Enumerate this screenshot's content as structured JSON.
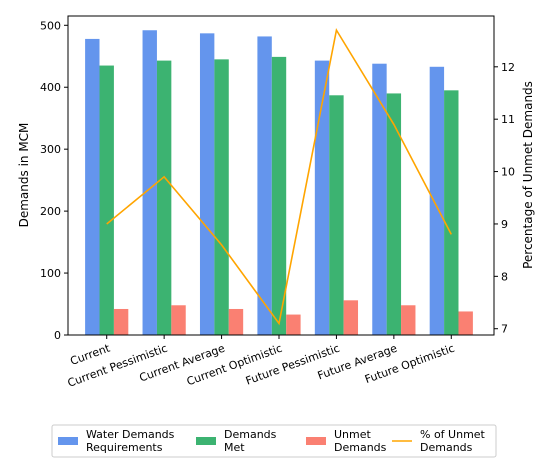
{
  "chart_data": {
    "type": "bar",
    "categories": [
      "Current",
      "Current Pessimistic",
      "Current Average",
      "Current Optimistic",
      "Future Pessimistic",
      "Future Average",
      "Future Optimistic"
    ],
    "series": [
      {
        "name": "Water Demands Requirements",
        "legend_lines": [
          "Water Demands",
          "Requirements"
        ],
        "values": [
          478,
          492,
          487,
          482,
          443,
          438,
          433
        ],
        "color": "#6495ED",
        "axis": "left",
        "kind": "bar"
      },
      {
        "name": "Demands Met",
        "legend_lines": [
          "Demands",
          "Met"
        ],
        "values": [
          435,
          443,
          445,
          449,
          387,
          390,
          395
        ],
        "color": "#3CB371",
        "axis": "left",
        "kind": "bar"
      },
      {
        "name": "Unmet Demands",
        "legend_lines": [
          "Unmet",
          "Demands"
        ],
        "values": [
          42,
          48,
          42,
          33,
          56,
          48,
          38
        ],
        "color": "#FA8072",
        "axis": "left",
        "kind": "bar"
      },
      {
        "name": "% of Unmet Demands",
        "legend_lines": [
          "% of Unmet",
          "Demands"
        ],
        "values": [
          9.0,
          9.9,
          8.6,
          7.1,
          12.7,
          10.9,
          8.8
        ],
        "color": "#FFA500",
        "axis": "right",
        "kind": "line"
      }
    ],
    "ylabel": "Demands in MCM",
    "y2label": "Percentage of Unmet Demands",
    "ylim": [
      0,
      515
    ],
    "y2lim": [
      6.88,
      12.97
    ],
    "yticks": [
      "0",
      "100",
      "200",
      "300",
      "400",
      "500"
    ],
    "y2ticks": [
      "7",
      "8",
      "9",
      "10",
      "11",
      "12"
    ],
    "grid": false,
    "legend_placement": "bottom"
  }
}
